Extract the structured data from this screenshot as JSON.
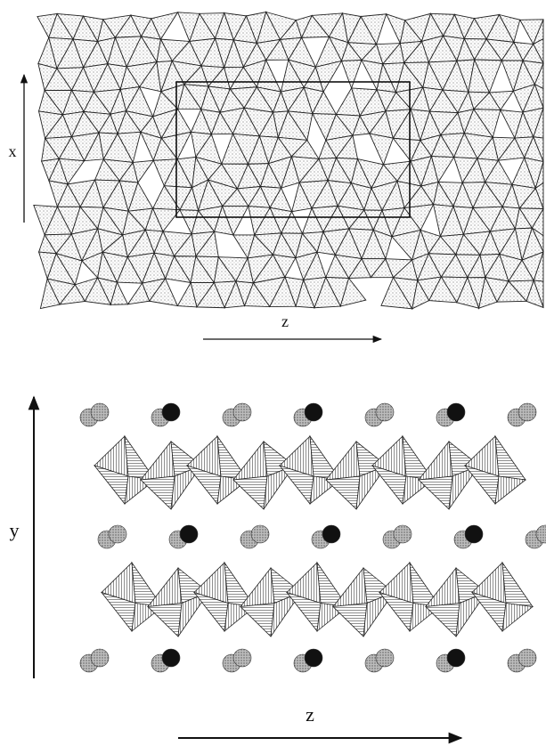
{
  "top_panel": {
    "vertical_axis_label": "x",
    "horizontal_axis_label": "z"
  },
  "bottom_panel": {
    "vertical_axis_label": "y",
    "horizontal_axis_label": "z"
  }
}
